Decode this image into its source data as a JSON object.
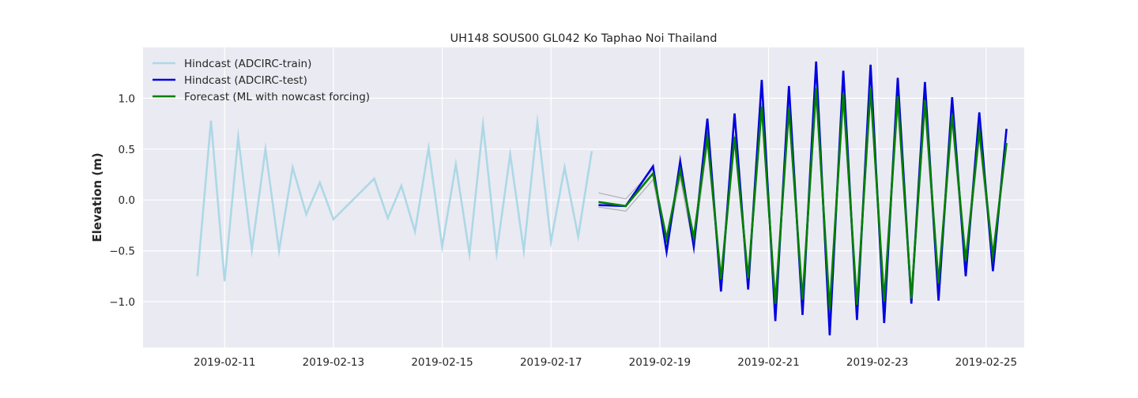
{
  "chart_data": {
    "type": "line",
    "title": "UH148 SOUS00 GL042 Ko Taphao Noi Thailand",
    "xlabel": "",
    "ylabel": "Elevation (m)",
    "xlim": [
      "2019-02-09T12:00",
      "2019-02-25T16:48"
    ],
    "ylim": [
      -1.45,
      1.5
    ],
    "x_ticks": [
      "2019-02-11",
      "2019-02-13",
      "2019-02-15",
      "2019-02-17",
      "2019-02-19",
      "2019-02-21",
      "2019-02-23",
      "2019-02-25"
    ],
    "y_ticks": [
      -1.0,
      -0.5,
      0.0,
      0.5,
      1.0
    ],
    "y_tick_labels": [
      "−1.0",
      "−0.5",
      "0.0",
      "0.5",
      "1.0"
    ],
    "grid": true,
    "background": "#eaeaf2",
    "legend_position": "upper-left",
    "ensemble": {
      "color": "#b0b0b0",
      "members": [
        {
          "x": [
            "2019-02-17T21:00",
            "2019-02-18T09:00",
            "2019-02-18T21:00",
            "2019-02-19T03:00",
            "2019-02-19T09:00",
            "2019-02-19T15:00",
            "2019-02-19T21:00",
            "2019-02-20T03:00",
            "2019-02-20T09:00",
            "2019-02-20T15:00",
            "2019-02-20T21:00",
            "2019-02-21T03:00",
            "2019-02-21T09:00",
            "2019-02-21T15:00",
            "2019-02-21T21:00",
            "2019-02-22T03:00",
            "2019-02-22T09:00",
            "2019-02-22T15:00",
            "2019-02-22T21:00",
            "2019-02-23T03:00",
            "2019-02-23T09:00",
            "2019-02-23T15:00",
            "2019-02-23T21:00",
            "2019-02-24T03:00",
            "2019-02-24T09:00",
            "2019-02-24T15:00",
            "2019-02-24T21:00",
            "2019-02-25T03:00",
            "2019-02-25T09:00"
          ],
          "y": [
            0.07,
            0.01,
            0.3,
            -0.42,
            0.33,
            -0.4,
            0.65,
            -0.76,
            0.64,
            -0.75,
            0.95,
            -1.0,
            0.93,
            -0.95,
            1.1,
            -1.05,
            1.05,
            -1.0,
            1.1,
            -0.97,
            1.0,
            -0.93,
            0.98,
            -0.85,
            0.85,
            -0.62,
            0.7,
            -0.58,
            0.7
          ]
        },
        {
          "x": [
            "2019-02-17T21:00",
            "2019-02-18T09:00",
            "2019-02-18T21:00",
            "2019-02-19T03:00",
            "2019-02-19T09:00",
            "2019-02-19T15:00",
            "2019-02-19T21:00",
            "2019-02-20T03:00",
            "2019-02-20T09:00",
            "2019-02-20T15:00",
            "2019-02-20T21:00",
            "2019-02-21T03:00",
            "2019-02-21T09:00",
            "2019-02-21T15:00",
            "2019-02-21T21:00",
            "2019-02-22T03:00",
            "2019-02-22T09:00",
            "2019-02-22T15:00",
            "2019-02-22T21:00",
            "2019-02-23T03:00",
            "2019-02-23T09:00",
            "2019-02-23T15:00",
            "2019-02-23T21:00",
            "2019-02-24T03:00",
            "2019-02-24T09:00",
            "2019-02-24T15:00",
            "2019-02-24T21:00",
            "2019-02-25T03:00",
            "2019-02-25T09:00"
          ],
          "y": [
            -0.07,
            -0.11,
            0.2,
            -0.47,
            0.22,
            -0.48,
            0.55,
            -0.85,
            0.55,
            -0.82,
            0.87,
            -1.1,
            0.85,
            -1.05,
            1.0,
            -1.15,
            0.95,
            -1.1,
            1.0,
            -1.07,
            0.9,
            -1.0,
            0.88,
            -0.95,
            0.75,
            -0.7,
            0.6,
            -0.66,
            0.55
          ]
        }
      ]
    },
    "series": [
      {
        "name": "Hindcast (ADCIRC-train)",
        "color": "#add8e6",
        "x": [
          "2019-02-10T12:00",
          "2019-02-10T18:00",
          "2019-02-11T00:00",
          "2019-02-11T06:00",
          "2019-02-11T12:00",
          "2019-02-11T18:00",
          "2019-02-12T00:00",
          "2019-02-12T06:00",
          "2019-02-12T12:00",
          "2019-02-12T18:00",
          "2019-02-13T00:00",
          "2019-02-13T18:00",
          "2019-02-14T00:00",
          "2019-02-14T06:00",
          "2019-02-14T12:00",
          "2019-02-14T18:00",
          "2019-02-15T00:00",
          "2019-02-15T06:00",
          "2019-02-15T12:00",
          "2019-02-15T18:00",
          "2019-02-16T00:00",
          "2019-02-16T06:00",
          "2019-02-16T12:00",
          "2019-02-16T18:00",
          "2019-02-17T00:00",
          "2019-02-17T06:00",
          "2019-02-17T12:00",
          "2019-02-17T18:00"
        ],
        "y": [
          -0.75,
          0.78,
          -0.8,
          0.62,
          -0.49,
          0.5,
          -0.5,
          0.32,
          -0.14,
          0.17,
          -0.19,
          0.21,
          -0.18,
          0.14,
          -0.31,
          0.51,
          -0.46,
          0.35,
          -0.53,
          0.74,
          -0.52,
          0.45,
          -0.5,
          0.76,
          -0.41,
          0.32,
          -0.36,
          0.48
        ]
      },
      {
        "name": "Hindcast (ADCIRC-test)",
        "color": "#0000e0",
        "x": [
          "2019-02-17T21:00",
          "2019-02-18T09:00",
          "2019-02-18T21:00",
          "2019-02-19T03:00",
          "2019-02-19T09:00",
          "2019-02-19T15:00",
          "2019-02-19T21:00",
          "2019-02-20T03:00",
          "2019-02-20T09:00",
          "2019-02-20T15:00",
          "2019-02-20T21:00",
          "2019-02-21T03:00",
          "2019-02-21T09:00",
          "2019-02-21T15:00",
          "2019-02-21T21:00",
          "2019-02-22T03:00",
          "2019-02-22T09:00",
          "2019-02-22T15:00",
          "2019-02-22T21:00",
          "2019-02-23T03:00",
          "2019-02-23T09:00",
          "2019-02-23T15:00",
          "2019-02-23T21:00",
          "2019-02-24T03:00",
          "2019-02-24T09:00",
          "2019-02-24T15:00",
          "2019-02-24T21:00",
          "2019-02-25T03:00",
          "2019-02-25T09:00"
        ],
        "y": [
          -0.05,
          -0.06,
          0.33,
          -0.51,
          0.38,
          -0.46,
          0.8,
          -0.9,
          0.85,
          -0.88,
          1.18,
          -1.19,
          1.12,
          -1.13,
          1.36,
          -1.33,
          1.27,
          -1.18,
          1.33,
          -1.21,
          1.2,
          -1.02,
          1.16,
          -0.99,
          1.01,
          -0.75,
          0.86,
          -0.7,
          0.7
        ]
      },
      {
        "name": "Forecast (ML with nowcast forcing)",
        "color": "#008000",
        "x": [
          "2019-02-17T21:00",
          "2019-02-18T09:00",
          "2019-02-18T21:00",
          "2019-02-19T03:00",
          "2019-02-19T09:00",
          "2019-02-19T15:00",
          "2019-02-19T21:00",
          "2019-02-20T03:00",
          "2019-02-20T09:00",
          "2019-02-20T15:00",
          "2019-02-20T21:00",
          "2019-02-21T03:00",
          "2019-02-21T09:00",
          "2019-02-21T15:00",
          "2019-02-21T21:00",
          "2019-02-22T03:00",
          "2019-02-22T09:00",
          "2019-02-22T15:00",
          "2019-02-22T21:00",
          "2019-02-23T03:00",
          "2019-02-23T09:00",
          "2019-02-23T15:00",
          "2019-02-23T21:00",
          "2019-02-24T03:00",
          "2019-02-24T09:00",
          "2019-02-24T15:00",
          "2019-02-24T21:00",
          "2019-02-25T03:00",
          "2019-02-25T09:00"
        ],
        "y": [
          -0.02,
          -0.06,
          0.26,
          -0.38,
          0.29,
          -0.37,
          0.62,
          -0.78,
          0.62,
          -0.77,
          0.92,
          -1.02,
          0.9,
          -0.98,
          1.1,
          -1.08,
          1.05,
          -1.03,
          1.1,
          -1.0,
          1.02,
          -0.97,
          0.98,
          -0.82,
          0.84,
          -0.6,
          0.68,
          -0.55,
          0.56
        ]
      }
    ]
  }
}
